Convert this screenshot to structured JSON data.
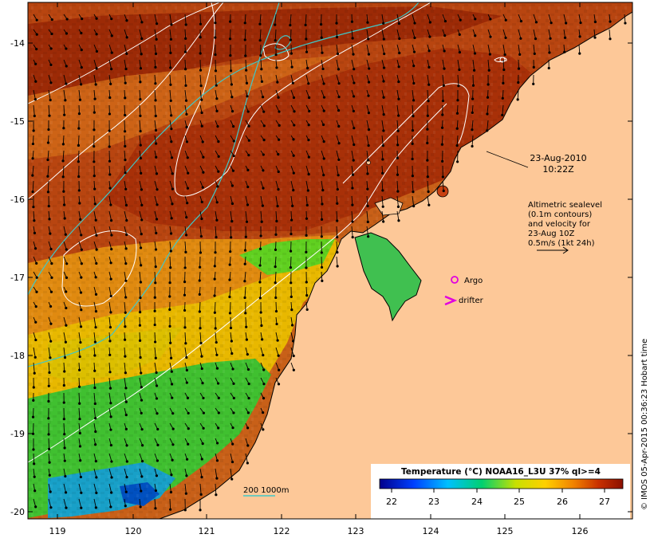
{
  "map": {
    "x_ticks": [
      "119",
      "120",
      "121",
      "122",
      "123",
      "124",
      "125",
      "126"
    ],
    "y_ticks": [
      "-14",
      "-15",
      "-16",
      "-17",
      "-18",
      "-19",
      "-20"
    ],
    "lon_range": [
      118.6,
      126.7
    ],
    "lat_range": [
      -20.1,
      -13.5
    ]
  },
  "annotations": {
    "date": "23-Aug-2010",
    "time": "10:22Z",
    "alt_line1": "Altimetric sealevel",
    "alt_line2": "(0.1m contours)",
    "alt_line3": "and velocity for",
    "alt_line4": "23-Aug 10Z",
    "alt_line5": "0.5m/s (1kt 24h)",
    "argo_label": "Argo",
    "drifter_label": "drifter",
    "depth_label": "200  1000m"
  },
  "colorbar": {
    "title": "Temperature (°C) NOAA16_L3U 37% ql>=4",
    "ticks": [
      "22",
      "23",
      "24",
      "25",
      "26",
      "27"
    ],
    "tick_values": [
      22,
      23,
      24,
      25,
      26,
      27
    ],
    "range": [
      21.7,
      27.4
    ]
  },
  "credit": "© IMOS 05-Apr-2015 00:36:23 Hobart time",
  "colors": {
    "land": "#fdc898",
    "argo": "#e000e0",
    "drifter": "#e000e0",
    "bathy": "#3fc8c8",
    "contour": "#ffffff"
  }
}
